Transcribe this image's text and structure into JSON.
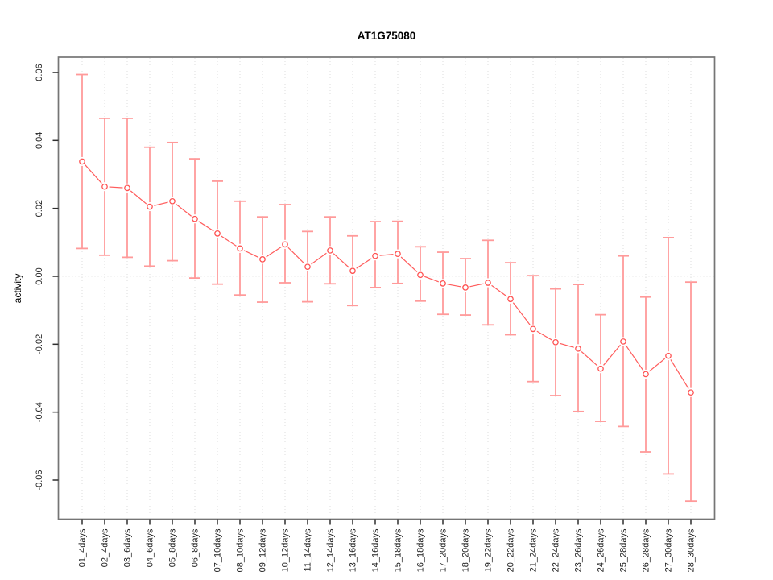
{
  "page": {
    "title": "AT1G75080"
  },
  "chart_data": {
    "type": "line",
    "title": "AT1G75080",
    "xlabel": "",
    "ylabel": "activity",
    "legend_position": "none",
    "marker": "open-circle",
    "grid": {
      "vertical_dotted_per_category": true,
      "horizontal_dotted_at": 0
    },
    "categories": [
      "01_4days",
      "02_4days",
      "03_6days",
      "04_6days",
      "05_8days",
      "06_8days",
      "07_10days",
      "08_10days",
      "09_12days",
      "10_12days",
      "11_14days",
      "12_14days",
      "13_16days",
      "14_16days",
      "15_18days",
      "16_18days",
      "17_20days",
      "18_20days",
      "19_22days",
      "20_22days",
      "21_24days",
      "22_24days",
      "23_26days",
      "24_26days",
      "25_28days",
      "26_28days",
      "27_30days",
      "28_30days"
    ],
    "series": [
      {
        "name": "activity",
        "values": [
          0.0338,
          0.0264,
          0.026,
          0.0205,
          0.0221,
          0.0169,
          0.0126,
          0.0082,
          0.005,
          0.0094,
          0.0028,
          0.0076,
          0.0016,
          0.006,
          0.0066,
          0.0004,
          -0.0021,
          -0.0033,
          -0.0019,
          -0.0067,
          -0.0155,
          -0.0194,
          -0.0213,
          -0.0272,
          -0.0192,
          -0.0288,
          -0.0234,
          -0.0342
        ],
        "err_high": [
          0.0594,
          0.0465,
          0.0465,
          0.038,
          0.0394,
          0.0346,
          0.028,
          0.0221,
          0.0175,
          0.0211,
          0.0132,
          0.0175,
          0.0119,
          0.0161,
          0.0162,
          0.0087,
          0.0071,
          0.0052,
          0.0106,
          0.004,
          0.0002,
          -0.0037,
          -0.0024,
          -0.0113,
          0.006,
          -0.0061,
          0.0114,
          -0.0017
        ],
        "err_low": [
          0.0082,
          0.0062,
          0.0056,
          0.003,
          0.0046,
          -0.0005,
          -0.0023,
          -0.0055,
          -0.0076,
          -0.0019,
          -0.0075,
          -0.0022,
          -0.0086,
          -0.0033,
          -0.0021,
          -0.0073,
          -0.0112,
          -0.0114,
          -0.0143,
          -0.0172,
          -0.031,
          -0.0351,
          -0.0398,
          -0.0427,
          -0.0442,
          -0.0517,
          -0.0582,
          -0.0662
        ]
      }
    ],
    "ytick_values": [
      0.06,
      0.04,
      0.02,
      0.0,
      -0.02,
      -0.04,
      -0.06
    ],
    "ytick_labels": [
      "0.06",
      "0.04",
      "0.02",
      "0.00",
      "-0.02",
      "-0.04",
      "-0.06"
    ],
    "ylim": [
      -0.0715,
      0.0645
    ],
    "colors": {
      "line": "#ff5c5c",
      "marker": "#ff5252",
      "error_bar": "#ff9a9a",
      "grid": "#dedede",
      "zero_line": "#d6d6d6",
      "box": "#757575",
      "tick": "#2e2e2e",
      "tick_text": "#1f1f1f"
    }
  }
}
